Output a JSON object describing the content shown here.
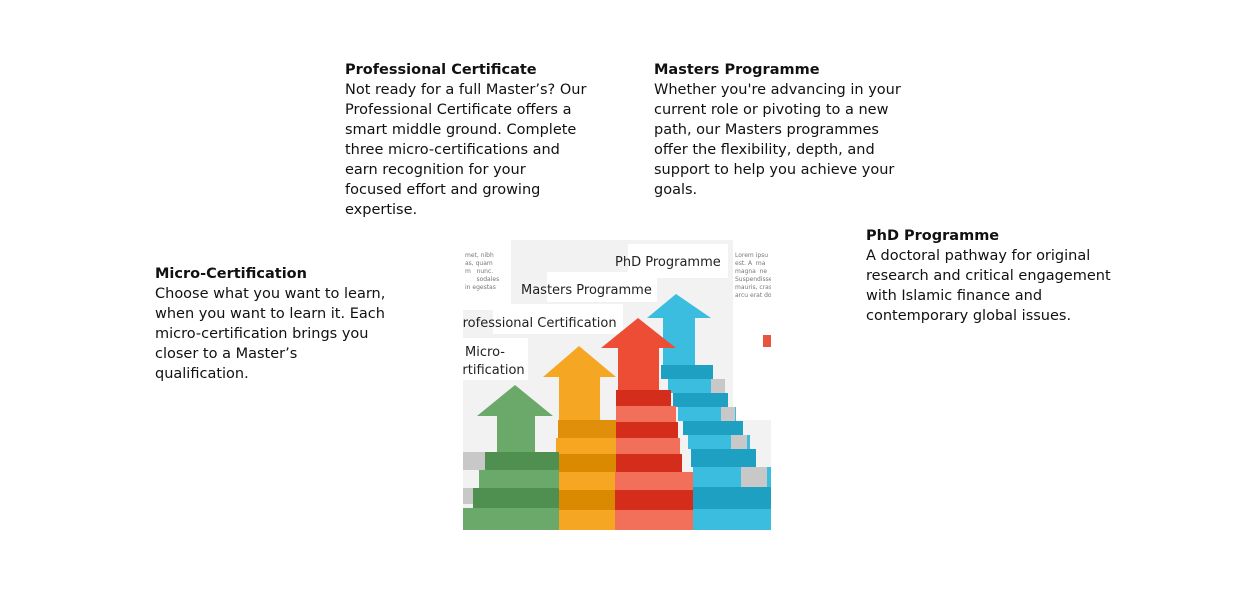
{
  "blocks": {
    "professional_certificate": {
      "title": "Professional Certificate",
      "body": "Not ready for a full Master’s? Our\nProfessional Certificate offers a\nsmart middle ground. Complete\nthree micro-certifications and\nearn recognition for your\nfocused effort and growing\nexpertise."
    },
    "masters_programme": {
      "title": "Masters Programme",
      "body": "Whether you're advancing in your\ncurrent role or pivoting to a new\npath, our Masters programmes\noffer the flexibility, depth, and\nsupport to help you achieve your\ngoals."
    },
    "micro_certification": {
      "title": "Micro-Certification",
      "body": "Choose what you want to learn,\nwhen you want to learn it. Each\nmicro-certification brings you\ncloser to a Master’s\nqualification."
    },
    "phd_programme": {
      "title": "PhD Programme",
      "body": "A doctoral pathway for original\nresearch and critical engagement\nwith Islamic finance and\ncontemporary global issues."
    }
  },
  "infographic": {
    "labels": {
      "phd": "PhD Programme",
      "masters": "Masters Programme",
      "professional": "Professional Certification",
      "micro": "Micro-\nCertification"
    },
    "colors": {
      "green": "#6aa96a",
      "orange": "#f5a623",
      "red": "#ee4d35",
      "blue": "#3bbde0"
    }
  }
}
